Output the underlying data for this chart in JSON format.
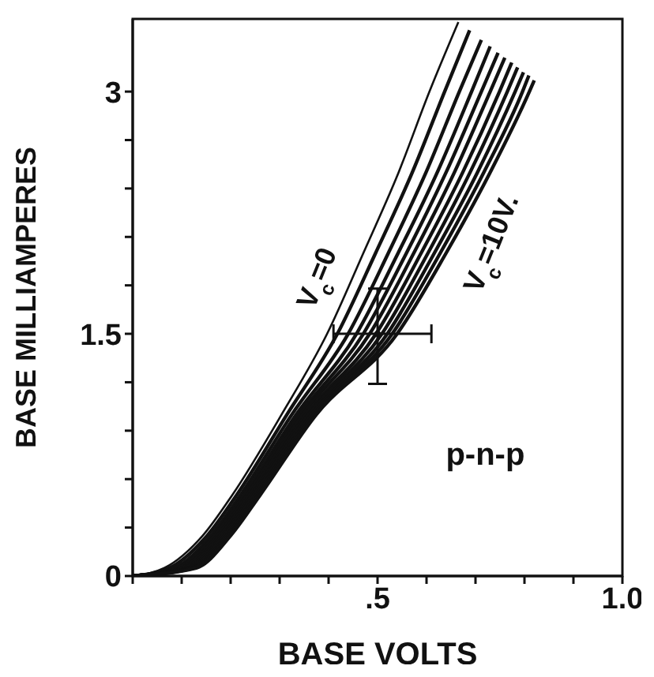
{
  "chart_data": {
    "type": "line",
    "xlabel": "BASE VOLTS",
    "ylabel": "BASE MILLIAMPERES",
    "xlim": [
      0,
      1
    ],
    "ylim": [
      0,
      3.45
    ],
    "xticks": [
      {
        "value": 0,
        "label": null
      },
      {
        "value": 0.1,
        "label": null
      },
      {
        "value": 0.2,
        "label": null
      },
      {
        "value": 0.3,
        "label": null
      },
      {
        "value": 0.4,
        "label": null
      },
      {
        "value": 0.5,
        "label": ".5"
      },
      {
        "value": 0.6,
        "label": null
      },
      {
        "value": 0.7,
        "label": null
      },
      {
        "value": 0.8,
        "label": null
      },
      {
        "value": 0.9,
        "label": null
      },
      {
        "value": 1,
        "label": "1.0"
      }
    ],
    "yticks": [
      0,
      {
        "value": 0.3,
        "label": null
      },
      {
        "value": 0.6,
        "label": null
      },
      {
        "value": 0.9,
        "label": null
      },
      {
        "value": 1.2,
        "label": null
      },
      1.5,
      {
        "value": 1.8,
        "label": null
      },
      {
        "value": 2.1,
        "label": null
      },
      {
        "value": 2.4,
        "label": null
      },
      {
        "value": 2.7,
        "label": null
      },
      3
    ],
    "marker": "none",
    "line_style": "solid",
    "annotations": [
      "p-n-p"
    ],
    "series": [
      {
        "name": "V$_{c}$=0",
        "color": "#111111",
        "x": [
          0,
          0.065,
          0.143,
          0.203,
          0.304,
          0.397,
          0.471,
          0.543,
          0.606,
          0.665
        ],
        "values": [
          0,
          0.05,
          0.25,
          0.5,
          1,
          1.5,
          2,
          2.5,
          3,
          3.43
        ]
      },
      {
        "color": "#111111",
        "x": [
          0,
          0.075,
          0.152,
          0.212,
          0.315,
          0.418,
          0.496,
          0.571,
          0.637,
          0.688
        ],
        "values": [
          0,
          0.05,
          0.25,
          0.5,
          1,
          1.5,
          2,
          2.5,
          3,
          3.38
        ]
      },
      {
        "color": "#111111",
        "x": [
          0,
          0.085,
          0.16,
          0.22,
          0.325,
          0.44,
          0.522,
          0.599,
          0.667,
          0.712
        ],
        "values": [
          0,
          0.05,
          0.25,
          0.5,
          1,
          1.5,
          2,
          2.5,
          3,
          3.32
        ]
      },
      {
        "color": "#111111",
        "x": [
          0,
          0.092,
          0.167,
          0.227,
          0.334,
          0.457,
          0.542,
          0.622,
          0.692,
          0.73
        ],
        "values": [
          0,
          0.05,
          0.25,
          0.5,
          1,
          1.5,
          2,
          2.5,
          3,
          3.28
        ]
      },
      {
        "color": "#111111",
        "x": [
          0,
          0.099,
          0.173,
          0.233,
          0.341,
          0.471,
          0.559,
          0.64,
          0.712,
          0.746
        ],
        "values": [
          0,
          0.05,
          0.25,
          0.5,
          1,
          1.5,
          2,
          2.5,
          3,
          3.24
        ]
      },
      {
        "color": "#111111",
        "x": [
          0,
          0.105,
          0.178,
          0.238,
          0.347,
          0.484,
          0.574,
          0.657,
          0.73,
          0.76
        ],
        "values": [
          0,
          0.05,
          0.25,
          0.5,
          1,
          1.5,
          2,
          2.5,
          3,
          3.21
        ]
      },
      {
        "color": "#111111",
        "x": [
          0,
          0.111,
          0.183,
          0.243,
          0.354,
          0.497,
          0.589,
          0.674,
          0.749,
          0.774
        ],
        "values": [
          0,
          0.05,
          0.25,
          0.5,
          1,
          1.5,
          2,
          2.5,
          3,
          3.18
        ]
      },
      {
        "color": "#111111",
        "x": [
          0,
          0.116,
          0.187,
          0.247,
          0.359,
          0.509,
          0.603,
          0.689,
          0.765,
          0.786
        ],
        "values": [
          0,
          0.05,
          0.25,
          0.5,
          1,
          1.5,
          2,
          2.5,
          3,
          3.15
        ]
      },
      {
        "color": "#111111",
        "x": [
          0,
          0.121,
          0.192,
          0.252,
          0.365,
          0.52,
          0.616,
          0.704,
          0.781,
          0.798
        ],
        "values": [
          0,
          0.05,
          0.25,
          0.5,
          1,
          1.5,
          2,
          2.5,
          3,
          3.12
        ]
      },
      {
        "color": "#111111",
        "x": [
          0,
          0.125,
          0.196,
          0.256,
          0.37,
          0.53,
          0.628,
          0.717,
          0.796,
          0.809
        ],
        "values": [
          0,
          0.05,
          0.25,
          0.5,
          1,
          1.5,
          2,
          2.5,
          3,
          3.1
        ]
      },
      {
        "name": "V$_{c}$=10V.",
        "color": "#111111",
        "x": [
          0,
          0.13,
          0.2,
          0.26,
          0.375,
          0.54,
          0.64,
          0.73,
          0.81,
          0.82
        ],
        "values": [
          0,
          0.05,
          0.25,
          0.5,
          1,
          1.5,
          2,
          2.5,
          3,
          3.07
        ]
      },
      {
        "type": "scatter",
        "marker": "circle",
        "color": "#111111",
        "x": [
          0.5
        ],
        "values": [
          1.5
        ],
        "errors": [
          [
            1.19,
            1.78
          ]
        ],
        "xerrors": [
          [
            0.41,
            0.61
          ]
        ]
      }
    ]
  }
}
